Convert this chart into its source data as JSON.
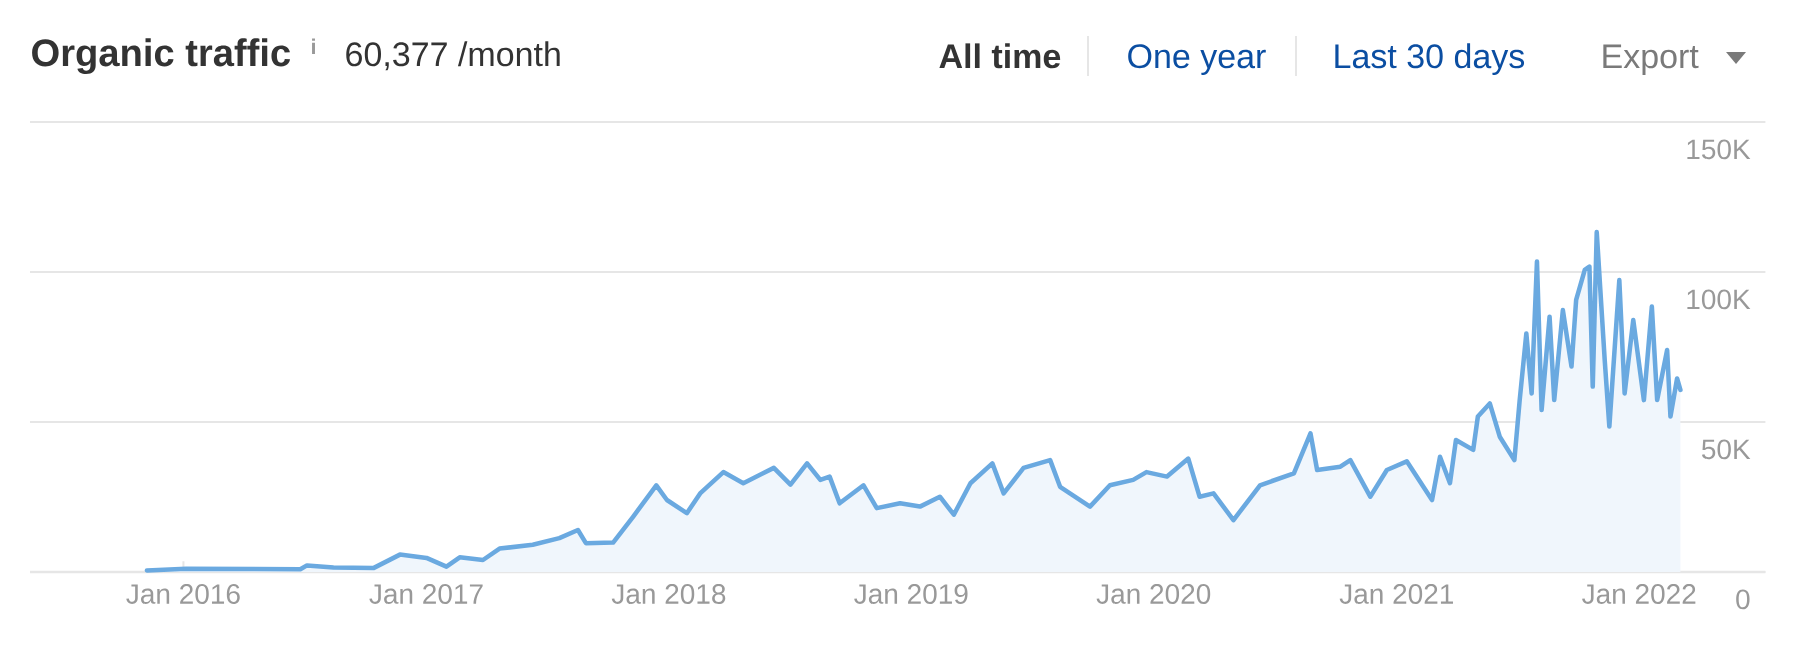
{
  "chart_data": {
    "type": "area",
    "title": "Organic traffic",
    "subtitle": "60,377 /month",
    "annotations": [
      "i",
      "All time",
      "One year",
      "Last 30 days",
      "Export"
    ],
    "x": [
      "2015-11-07",
      "2016-01-05",
      "2016-06-25",
      "2016-07-05",
      "2016-08-14",
      "2016-10-13",
      "2016-11-22",
      "2017-01-01",
      "2017-01-31",
      "2017-02-20",
      "2017-03-27",
      "2017-04-21",
      "2017-06-10",
      "2017-07-20",
      "2017-08-17",
      "2017-08-29",
      "2017-10-09",
      "2017-11-08",
      "2017-12-13",
      "2017-12-29",
      "2018-01-28",
      "2018-02-17",
      "2018-03-24",
      "2018-04-23",
      "2018-06-08",
      "2018-07-03",
      "2018-07-28",
      "2018-08-17",
      "2018-08-31",
      "2018-09-15",
      "2018-10-21",
      "2018-11-10",
      "2018-12-15",
      "2019-01-14",
      "2019-02-13",
      "2019-03-06",
      "2019-03-31",
      "2019-05-03",
      "2019-05-20",
      "2019-06-19",
      "2019-07-29",
      "2019-08-13",
      "2019-09-27",
      "2019-10-27",
      "2019-12-01",
      "2019-12-21",
      "2020-01-21",
      "2020-02-22",
      "2020-03-10",
      "2020-03-31",
      "2020-04-30",
      "2020-06-09",
      "2020-07-30",
      "2020-08-24",
      "2020-09-03",
      "2020-10-08",
      "2020-10-23",
      "2020-11-22",
      "2020-12-17",
      "2021-01-16",
      "2021-02-23",
      "2021-03-07",
      "2021-03-22",
      "2021-03-31",
      "2021-04-26",
      "2021-05-03",
      "2021-05-21",
      "2021-06-05",
      "2021-06-27",
      "2021-07-05",
      "2021-07-15",
      "2021-07-23",
      "2021-07-31",
      "2021-08-07",
      "2021-08-19",
      "2021-08-26",
      "2021-09-08",
      "2021-09-21",
      "2021-09-28",
      "2021-10-11",
      "2021-10-18",
      "2021-10-23",
      "2021-10-29",
      "2021-11-10",
      "2021-11-17",
      "2021-12-02",
      "2021-12-10",
      "2021-12-23",
      "2022-01-08",
      "2022-01-20",
      "2022-01-28",
      "2022-02-12",
      "2022-02-17",
      "2022-02-27",
      "2022-03-04"
    ],
    "series": [
      {
        "color": "#6aa9e0",
        "values": [
          500,
          1100,
          900,
          2200,
          1500,
          1300,
          5800,
          4700,
          1800,
          4900,
          4000,
          7800,
          9100,
          11300,
          14000,
          9600,
          9800,
          18400,
          28900,
          24000,
          19600,
          26200,
          33300,
          29600,
          34700,
          29100,
          36200,
          30700,
          31800,
          22900,
          28900,
          21300,
          22900,
          21800,
          25100,
          19100,
          29600,
          36200,
          26200,
          34700,
          37300,
          28400,
          21800,
          28900,
          30700,
          33300,
          31800,
          37800,
          25100,
          26200,
          17300,
          28900,
          32900,
          46200,
          34000,
          35100,
          37300,
          25100,
          34000,
          36900,
          24000,
          38400,
          29600,
          44000,
          40700,
          51800,
          56200,
          45100,
          37300,
          57300,
          79500,
          59500,
          103500,
          54000,
          85100,
          57300,
          87300,
          68500,
          90700,
          100700,
          101800,
          61800,
          113300,
          70700,
          48500,
          97300,
          59500,
          84000,
          57300,
          88500,
          57300,
          74000,
          51800,
          64500,
          60700
        ]
      }
    ],
    "xlim": [
      "2015-05-15",
      "2022-07-10"
    ],
    "xticks": [
      {
        "value": "2016-01-01",
        "label": "Jan 2016"
      },
      {
        "value": "2017-01-01",
        "label": "Jan 2017"
      },
      {
        "value": "2018-01-01",
        "label": "Jan 2018"
      },
      {
        "value": "2019-01-01",
        "label": "Jan 2019"
      },
      {
        "value": "2020-01-01",
        "label": "Jan 2020"
      },
      {
        "value": "2021-01-01",
        "label": "Jan 2021"
      },
      {
        "value": "2022-01-01",
        "label": "Jan 2022"
      }
    ],
    "ylim": [
      0,
      150000
    ],
    "yticks": [
      0,
      {
        "value": 50000,
        "label": "50K"
      },
      {
        "value": 100000,
        "label": "100K"
      },
      {
        "value": 150000,
        "label": "150K"
      }
    ],
    "grid": "y"
  }
}
